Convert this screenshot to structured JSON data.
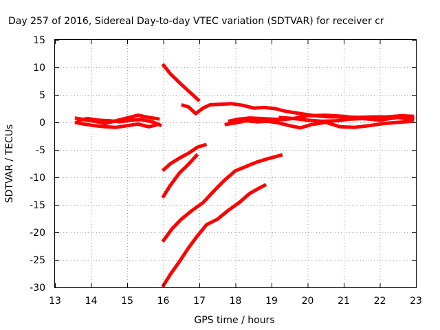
{
  "chart_data": {
    "type": "line",
    "title": "Day 257 of 2016, Sidereal Day-to-day VTEC variation (SDTVAR) for receiver cr",
    "xlabel": "GPS time / hours",
    "ylabel": "SDTVAR / TECUs",
    "xlim": [
      13,
      23
    ],
    "ylim": [
      -30,
      15
    ],
    "xticks": [
      13,
      14,
      15,
      16,
      17,
      18,
      19,
      20,
      21,
      22,
      23
    ],
    "yticks": [
      -30,
      -25,
      -20,
      -15,
      -10,
      -5,
      0,
      5,
      10,
      15
    ],
    "grid": true,
    "legend": "none",
    "series_color": "#ff0000",
    "series": [
      {
        "x": [
          13.55,
          13.8,
          14.1,
          14.4,
          14.7,
          15.0,
          15.3,
          15.6,
          15.9
        ],
        "y": [
          0.8,
          0.5,
          0.2,
          -0.2,
          0.3,
          0.8,
          1.3,
          0.9,
          0.6
        ]
      },
      {
        "x": [
          13.55,
          13.8,
          14.1,
          14.4,
          14.7,
          15.0,
          15.3,
          15.6,
          15.9
        ],
        "y": [
          0.0,
          -0.3,
          -0.6,
          -0.8,
          -0.9,
          -0.6,
          -0.3,
          -0.8,
          -0.3
        ]
      },
      {
        "x": [
          13.6,
          13.9,
          14.2,
          14.5,
          14.8,
          15.1,
          15.4,
          15.7,
          15.95
        ],
        "y": [
          0.3,
          0.7,
          0.4,
          0.3,
          0.1,
          0.4,
          0.5,
          0.1,
          -0.6
        ]
      },
      {
        "x": [
          15.98,
          16.2,
          16.5,
          16.8,
          17.0
        ],
        "y": [
          10.6,
          8.8,
          6.9,
          5.1,
          3.9
        ]
      },
      {
        "x": [
          16.5,
          16.7,
          16.9,
          17.1,
          17.3,
          17.6,
          17.9,
          18.2,
          18.5,
          18.8,
          19.1,
          19.4,
          19.8,
          20.2,
          20.6,
          21.0,
          21.4,
          21.8,
          22.2,
          22.6,
          22.95
        ],
        "y": [
          3.2,
          2.8,
          1.6,
          2.6,
          3.2,
          3.3,
          3.4,
          3.1,
          2.6,
          2.7,
          2.5,
          2.0,
          1.6,
          1.2,
          1.0,
          1.0,
          0.9,
          1.0,
          1.0,
          1.2,
          1.1
        ]
      },
      {
        "x": [
          17.8,
          18.1,
          18.4,
          18.7,
          19.0,
          19.3,
          19.6,
          20.0,
          20.4,
          20.8,
          21.2,
          21.6,
          22.0,
          22.4,
          22.8,
          22.95
        ],
        "y": [
          0.2,
          0.6,
          0.8,
          0.7,
          0.6,
          0.5,
          0.7,
          0.4,
          0.2,
          0.3,
          0.6,
          0.7,
          0.8,
          1.0,
          0.6,
          0.4
        ]
      },
      {
        "x": [
          17.7,
          18.0,
          18.3,
          18.6,
          18.9,
          19.2,
          19.5,
          19.8,
          20.1,
          20.5,
          20.9,
          21.3,
          21.7,
          22.1,
          22.5,
          22.9
        ],
        "y": [
          -0.4,
          -0.1,
          0.3,
          0.1,
          0.2,
          -0.1,
          -0.6,
          -1.0,
          -0.4,
          0.0,
          -0.8,
          -0.9,
          -0.6,
          -0.2,
          0.0,
          0.2
        ]
      },
      {
        "x": [
          19.2,
          19.6,
          20.0,
          20.5,
          21.0,
          21.5,
          22.0,
          22.5,
          22.95
        ],
        "y": [
          0.9,
          0.7,
          1.2,
          1.3,
          1.1,
          0.7,
          0.4,
          0.9,
          1.0
        ]
      },
      {
        "x": [
          15.98,
          16.2,
          16.45,
          16.7,
          16.95,
          17.2
        ],
        "y": [
          -8.8,
          -7.5,
          -6.5,
          -5.6,
          -4.5,
          -4.0
        ]
      },
      {
        "x": [
          15.98,
          16.2,
          16.45,
          16.7,
          16.95
        ],
        "y": [
          -13.7,
          -11.4,
          -9.2,
          -7.6,
          -5.8
        ]
      },
      {
        "x": [
          15.98,
          16.25,
          16.5,
          16.8,
          17.1,
          17.4,
          17.7,
          18.0,
          18.3,
          18.6,
          18.9,
          19.3
        ],
        "y": [
          -21.7,
          -19.3,
          -17.6,
          -16.0,
          -14.6,
          -12.5,
          -10.5,
          -8.8,
          -8.0,
          -7.2,
          -6.6,
          -5.9
        ]
      },
      {
        "x": [
          15.98,
          16.2,
          16.45,
          16.7,
          16.95,
          17.2,
          17.5,
          17.8,
          18.1,
          18.4,
          18.7,
          18.85
        ],
        "y": [
          -29.9,
          -27.6,
          -25.3,
          -22.8,
          -20.6,
          -18.6,
          -17.6,
          -16.0,
          -14.6,
          -12.9,
          -11.8,
          -11.3
        ]
      }
    ]
  }
}
